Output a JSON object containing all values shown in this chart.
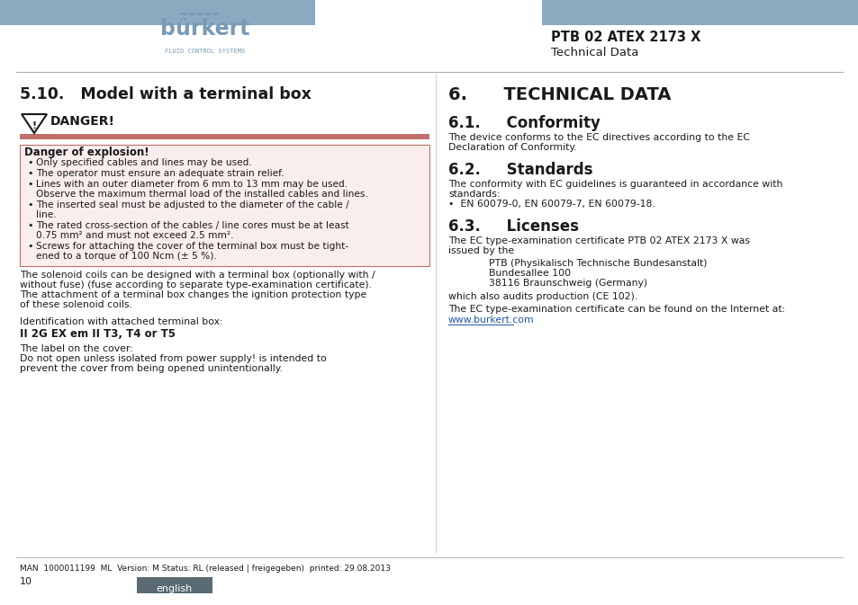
{
  "header_bar_color": "#8aaabf",
  "header_bar_height": 28,
  "logo_text": "bürkert",
  "logo_sub": "FLUID CONTROL SYSTEMS",
  "logo_color": "#7a9bb5",
  "ptb_title": "PTB 02 ATEX 2173 X",
  "ptb_subtitle": "Technical Data",
  "section_left_title": "5.10.   Model with a terminal box",
  "danger_title": "DANGER!",
  "danger_box_bg": "#f9eded",
  "danger_bar_color": "#c0706a",
  "danger_explosion_bold": "Danger of explosion!",
  "danger_bullets": [
    "Only specified cables and lines may be used.",
    "The operator must ensure an adequate strain relief.",
    "Lines with an outer diameter from 6 mm to 13 mm may be used.\nObserve the maximum thermal load of the installed cables and lines.",
    "The inserted seal must be adjusted to the diameter of the cable /\nline.",
    "The rated cross-section of the cables / line cores must be at least\n0.75 mm² and must not exceed 2.5 mm².",
    "Screws for attaching the cover of the terminal box must be tight-\nened to a torque of 100 Ncm (± 5 %)."
  ],
  "para1": "The solenoid coils can be designed with a terminal box (optionally with /\nwithout fuse) (fuse according to separate type-examination certificate).\nThe attachment of a terminal box changes the ignition protection type\nof these solenoid coils.",
  "para2_normal": "Identification with attached terminal box:",
  "para2_bold": "II 2G EX em II T3, T4 or T5",
  "para3": "The label on the cover:\nDo not open unless isolated from power supply! is intended to\nprevent the cover from being opened unintentionally.",
  "section_right_title": "6.      TECHNICAL DATA",
  "sec61_title": "6.1.     Conformity",
  "sec61_text": "The device conforms to the EC directives according to the EC\nDeclaration of Conformity.",
  "sec62_title": "6.2.     Standards",
  "sec62_text": "The conformity with EC guidelines is guaranteed in accordance with\nstandards:\n•  EN 60079-0, EN 60079-7, EN 60079-18.",
  "sec63_title": "6.3.     Licenses",
  "sec63_text1": "The EC type-examination certificate PTB 02 ATEX 2173 X was\nissued by the",
  "sec63_indent": "PTB (Physikalisch Technische Bundesanstalt)\nBundesallee 100\n38116 Braunschweig (Germany)",
  "sec63_text2": "which also audits production (CE 102).",
  "sec63_text3": "The EC type-examination certificate can be found on the Internet at:",
  "sec63_link": "www.burkert.com",
  "footer_line_text": "MAN  1000011199  ML  Version: M Status: RL (released | freigegeben)  printed: 29.08.2013",
  "footer_page": "10",
  "footer_lang_bg": "#5a6a72",
  "footer_lang_text": "english",
  "bg_color": "#ffffff",
  "text_color": "#1a1a1a",
  "link_color": "#2255aa"
}
